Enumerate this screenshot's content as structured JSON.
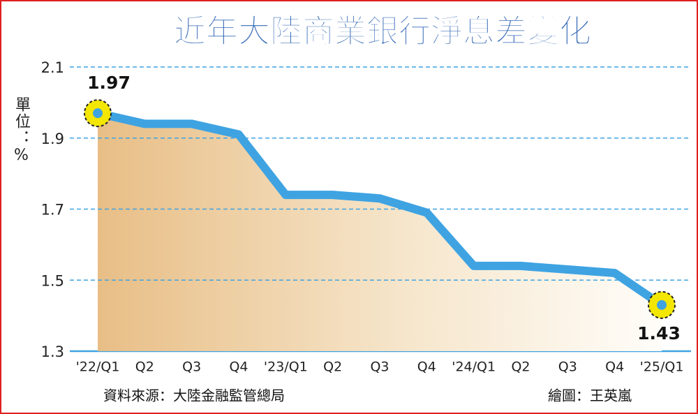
{
  "chart_data": {
    "type": "line",
    "title": "近年大陸商業銀行淨息差變化",
    "y_label": "單位：%",
    "source": "資料來源：大陸金融監管總局",
    "credit": "繪圖：王英嵐",
    "categories": [
      "'22/Q1",
      "Q2",
      "Q3",
      "Q4",
      "'23/Q1",
      "Q2",
      "Q3",
      "Q4",
      "'24/Q1",
      "Q2",
      "Q3",
      "Q4",
      "'25/Q1"
    ],
    "values": [
      1.97,
      1.94,
      1.94,
      1.91,
      1.74,
      1.74,
      1.73,
      1.69,
      1.54,
      1.54,
      1.53,
      1.52,
      1.43
    ],
    "color": "#3fa3e2",
    "ylim": [
      1.3,
      2.1
    ],
    "yticks": [
      1.3,
      1.5,
      1.7,
      1.9,
      2.1
    ],
    "grid": true
  }
}
